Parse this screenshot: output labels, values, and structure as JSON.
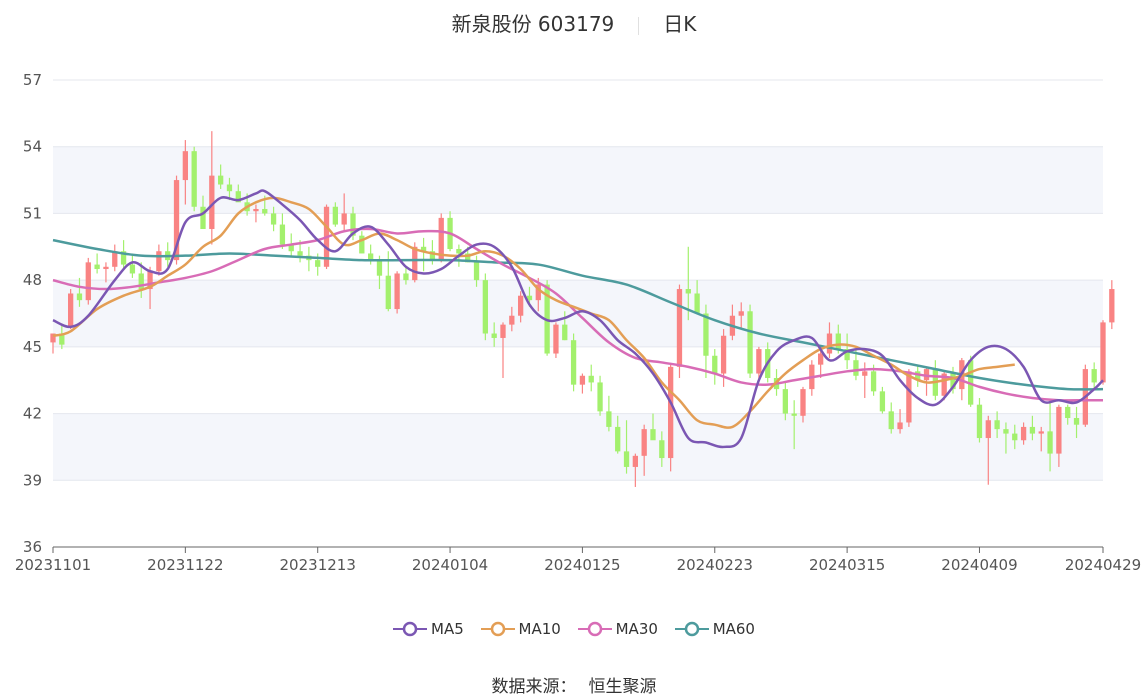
{
  "header": {
    "stock": "新泉股份 603179",
    "period": "日K"
  },
  "source": {
    "label": "数据来源：",
    "value": "恒生聚源"
  },
  "colors": {
    "up": "#f98383",
    "down": "#a3f06d",
    "ma5": "#7b57b3",
    "ma10": "#e39e55",
    "ma30": "#d86cb6",
    "ma60": "#4d9b9d"
  },
  "chart_data": {
    "type": "candlestick",
    "ylim": [
      36,
      57
    ],
    "yticks": [
      36,
      39,
      42,
      45,
      48,
      51,
      54,
      57
    ],
    "xticks": [
      "20231101",
      "20231122",
      "20231213",
      "20240104",
      "20240125",
      "20240223",
      "20240315",
      "20240409",
      "20240429"
    ],
    "x_count": 120,
    "xtick_index": [
      0,
      15,
      30,
      45,
      60,
      75,
      90,
      105,
      119
    ],
    "legend": [
      "MA5",
      "MA10",
      "MA30",
      "MA60"
    ],
    "candles": [
      [
        45.2,
        45.6,
        44.7,
        45.6
      ],
      [
        45.6,
        46.0,
        44.9,
        45.1
      ],
      [
        45.9,
        47.6,
        45.8,
        47.4
      ],
      [
        47.4,
        48.1,
        46.8,
        47.1
      ],
      [
        47.1,
        49.0,
        46.9,
        48.8
      ],
      [
        48.7,
        49.2,
        48.3,
        48.5
      ],
      [
        48.5,
        48.8,
        47.9,
        48.6
      ],
      [
        48.6,
        49.6,
        48.4,
        49.3
      ],
      [
        49.3,
        49.8,
        48.5,
        48.7
      ],
      [
        48.7,
        49.2,
        48.1,
        48.3
      ],
      [
        48.3,
        48.8,
        47.2,
        47.6
      ],
      [
        47.6,
        48.6,
        46.7,
        48.4
      ],
      [
        48.4,
        49.6,
        48.2,
        49.3
      ],
      [
        49.3,
        49.7,
        48.6,
        48.9
      ],
      [
        48.9,
        52.7,
        48.7,
        52.5
      ],
      [
        52.5,
        54.3,
        51.4,
        53.8
      ],
      [
        53.8,
        54.0,
        51.1,
        51.3
      ],
      [
        51.3,
        51.8,
        50.4,
        50.3
      ],
      [
        50.3,
        54.7,
        49.6,
        52.7
      ],
      [
        52.7,
        53.2,
        52.1,
        52.3
      ],
      [
        52.3,
        52.6,
        51.6,
        52.0
      ],
      [
        52.0,
        52.3,
        51.6,
        51.5
      ],
      [
        51.5,
        51.9,
        50.9,
        51.1
      ],
      [
        51.1,
        51.4,
        50.6,
        51.2
      ],
      [
        51.2,
        51.8,
        50.9,
        51.0
      ],
      [
        51.0,
        51.3,
        50.2,
        50.5
      ],
      [
        50.5,
        51.0,
        49.4,
        49.6
      ],
      [
        49.6,
        50.1,
        49.1,
        49.3
      ],
      [
        49.3,
        49.8,
        48.8,
        49.1
      ],
      [
        49.1,
        49.5,
        48.4,
        48.9
      ],
      [
        48.9,
        49.2,
        48.2,
        48.6
      ],
      [
        48.6,
        51.4,
        48.5,
        51.3
      ],
      [
        51.3,
        51.5,
        50.4,
        50.5
      ],
      [
        50.5,
        51.9,
        50.2,
        51.0
      ],
      [
        51.0,
        51.3,
        49.8,
        50.0
      ],
      [
        50.0,
        50.2,
        49.2,
        49.2
      ],
      [
        49.2,
        49.6,
        48.7,
        48.9
      ],
      [
        48.9,
        49.1,
        47.6,
        48.2
      ],
      [
        48.2,
        49.3,
        46.6,
        46.7
      ],
      [
        46.7,
        48.4,
        46.5,
        48.3
      ],
      [
        48.3,
        48.6,
        47.8,
        48.0
      ],
      [
        48.0,
        49.7,
        47.9,
        49.5
      ],
      [
        49.5,
        49.9,
        48.4,
        49.3
      ],
      [
        49.3,
        49.8,
        48.7,
        48.9
      ],
      [
        48.9,
        51.0,
        48.8,
        50.8
      ],
      [
        50.8,
        51.1,
        49.3,
        49.4
      ],
      [
        49.4,
        49.6,
        48.6,
        49.2
      ],
      [
        49.2,
        49.5,
        48.8,
        48.8
      ],
      [
        48.8,
        49.1,
        47.7,
        48.0
      ],
      [
        48.0,
        48.3,
        45.3,
        45.6
      ],
      [
        45.6,
        46.1,
        45.0,
        45.4
      ],
      [
        45.4,
        46.1,
        43.6,
        46.0
      ],
      [
        46.0,
        46.8,
        45.7,
        46.4
      ],
      [
        46.4,
        47.5,
        46.1,
        47.3
      ],
      [
        47.3,
        47.7,
        46.8,
        47.1
      ],
      [
        47.1,
        48.1,
        46.6,
        47.8
      ],
      [
        47.8,
        48.0,
        44.6,
        44.7
      ],
      [
        44.7,
        46.1,
        44.5,
        46.0
      ],
      [
        46.0,
        46.6,
        45.3,
        45.3
      ],
      [
        45.3,
        45.6,
        43.0,
        43.3
      ],
      [
        43.3,
        43.8,
        42.9,
        43.7
      ],
      [
        43.7,
        44.2,
        43.0,
        43.4
      ],
      [
        43.4,
        43.7,
        41.9,
        42.1
      ],
      [
        42.1,
        42.8,
        41.2,
        41.4
      ],
      [
        41.4,
        41.9,
        40.2,
        40.3
      ],
      [
        40.3,
        41.7,
        39.3,
        39.6
      ],
      [
        39.6,
        40.2,
        38.7,
        40.1
      ],
      [
        40.1,
        41.5,
        39.2,
        41.3
      ],
      [
        41.3,
        42.0,
        40.9,
        40.8
      ],
      [
        40.8,
        41.2,
        39.6,
        40.0
      ],
      [
        40.0,
        44.2,
        39.4,
        44.1
      ],
      [
        44.1,
        47.8,
        43.6,
        47.6
      ],
      [
        47.6,
        49.5,
        46.2,
        47.4
      ],
      [
        47.4,
        48.0,
        46.5,
        46.5
      ],
      [
        46.5,
        46.9,
        43.6,
        44.6
      ],
      [
        44.6,
        44.9,
        43.3,
        43.8
      ],
      [
        43.8,
        45.8,
        43.2,
        45.5
      ],
      [
        45.5,
        46.9,
        45.3,
        46.4
      ],
      [
        46.4,
        47.0,
        45.8,
        46.6
      ],
      [
        46.6,
        46.9,
        43.6,
        43.8
      ],
      [
        43.8,
        45.0,
        43.4,
        44.9
      ],
      [
        44.9,
        45.2,
        43.4,
        43.6
      ],
      [
        43.6,
        44.0,
        42.8,
        43.1
      ],
      [
        43.1,
        43.4,
        41.7,
        42.0
      ],
      [
        42.0,
        42.6,
        40.4,
        41.9
      ],
      [
        41.9,
        43.2,
        41.6,
        43.1
      ],
      [
        43.1,
        44.4,
        42.8,
        44.2
      ],
      [
        44.2,
        45.0,
        43.6,
        44.7
      ],
      [
        44.7,
        46.1,
        44.5,
        45.6
      ],
      [
        45.6,
        46.0,
        44.7,
        44.9
      ],
      [
        44.9,
        45.6,
        44.0,
        44.4
      ],
      [
        44.4,
        44.9,
        43.5,
        43.7
      ],
      [
        43.7,
        44.3,
        42.7,
        43.9
      ],
      [
        43.9,
        44.2,
        42.8,
        43.0
      ],
      [
        43.0,
        43.2,
        42.0,
        42.1
      ],
      [
        42.1,
        42.5,
        41.1,
        41.3
      ],
      [
        41.3,
        42.2,
        41.1,
        41.6
      ],
      [
        41.6,
        44.0,
        41.4,
        43.9
      ],
      [
        43.9,
        44.2,
        43.2,
        43.5
      ],
      [
        43.5,
        44.1,
        42.8,
        44.0
      ],
      [
        44.0,
        44.4,
        42.6,
        42.8
      ],
      [
        42.8,
        43.9,
        42.6,
        43.8
      ],
      [
        43.8,
        44.1,
        42.9,
        43.1
      ],
      [
        43.1,
        44.5,
        42.6,
        44.4
      ],
      [
        44.4,
        44.6,
        42.3,
        42.4
      ],
      [
        42.4,
        42.7,
        40.7,
        40.9
      ],
      [
        40.9,
        41.9,
        38.8,
        41.7
      ],
      [
        41.7,
        42.1,
        40.9,
        41.3
      ],
      [
        41.3,
        41.6,
        40.2,
        41.1
      ],
      [
        41.1,
        41.5,
        40.4,
        40.8
      ],
      [
        40.8,
        41.6,
        40.6,
        41.4
      ],
      [
        41.4,
        41.9,
        40.8,
        41.1
      ],
      [
        41.1,
        41.4,
        40.3,
        41.2
      ],
      [
        41.2,
        42.6,
        39.4,
        40.2
      ],
      [
        40.2,
        42.4,
        39.6,
        42.3
      ],
      [
        42.3,
        42.4,
        41.5,
        41.8
      ],
      [
        41.8,
        42.3,
        40.9,
        41.5
      ],
      [
        41.5,
        44.2,
        41.4,
        44.0
      ],
      [
        44.0,
        44.3,
        43.1,
        43.4
      ],
      [
        43.4,
        46.2,
        43.3,
        46.1
      ],
      [
        46.1,
        48.0,
        45.8,
        47.6
      ]
    ],
    "ma5": [
      [
        0,
        46.2
      ],
      [
        2,
        45.9
      ],
      [
        4,
        46.4
      ],
      [
        7,
        48.0
      ],
      [
        9,
        48.8
      ],
      [
        11,
        48.4
      ],
      [
        13,
        48.5
      ],
      [
        15,
        50.6
      ],
      [
        17,
        51.0
      ],
      [
        19,
        51.7
      ],
      [
        21,
        51.6
      ],
      [
        23,
        51.9
      ],
      [
        24,
        52.0
      ],
      [
        26,
        51.4
      ],
      [
        28,
        50.7
      ],
      [
        30,
        49.8
      ],
      [
        32,
        49.3
      ],
      [
        34,
        50.1
      ],
      [
        36,
        50.4
      ],
      [
        38,
        49.6
      ],
      [
        40,
        48.6
      ],
      [
        42,
        48.3
      ],
      [
        44,
        48.5
      ],
      [
        46,
        49.1
      ],
      [
        48,
        49.6
      ],
      [
        50,
        49.5
      ],
      [
        52,
        48.6
      ],
      [
        54,
        46.9
      ],
      [
        56,
        46.2
      ],
      [
        58,
        46.3
      ],
      [
        60,
        46.6
      ],
      [
        62,
        46.2
      ],
      [
        64,
        45.3
      ],
      [
        66,
        44.7
      ],
      [
        68,
        43.8
      ],
      [
        70,
        42.5
      ],
      [
        72,
        40.9
      ],
      [
        74,
        40.7
      ],
      [
        76,
        40.5
      ],
      [
        78,
        40.9
      ],
      [
        80,
        43.5
      ],
      [
        82,
        44.8
      ],
      [
        84,
        45.3
      ],
      [
        86,
        45.4
      ],
      [
        88,
        44.4
      ],
      [
        90,
        44.8
      ],
      [
        92,
        44.9
      ],
      [
        94,
        44.6
      ],
      [
        96,
        43.5
      ],
      [
        98,
        42.7
      ],
      [
        100,
        42.4
      ],
      [
        102,
        43.2
      ],
      [
        104,
        44.4
      ],
      [
        106,
        45.0
      ],
      [
        108,
        44.9
      ],
      [
        110,
        44.1
      ],
      [
        112,
        42.6
      ],
      [
        114,
        42.6
      ],
      [
        116,
        42.5
      ],
      [
        118,
        43.1
      ],
      [
        119,
        43.5
      ]
    ],
    "ma10": [
      [
        0,
        45.5
      ],
      [
        2,
        45.7
      ],
      [
        5,
        46.7
      ],
      [
        8,
        47.3
      ],
      [
        11,
        47.7
      ],
      [
        13,
        48.2
      ],
      [
        15,
        48.7
      ],
      [
        17,
        49.5
      ],
      [
        19,
        50.0
      ],
      [
        21,
        51.0
      ],
      [
        23,
        51.5
      ],
      [
        25,
        51.7
      ],
      [
        27,
        51.5
      ],
      [
        29,
        51.2
      ],
      [
        31,
        50.4
      ],
      [
        33,
        49.6
      ],
      [
        35,
        49.8
      ],
      [
        37,
        50.1
      ],
      [
        39,
        49.8
      ],
      [
        41,
        49.4
      ],
      [
        43,
        49.2
      ],
      [
        45,
        49.1
      ],
      [
        47,
        49.1
      ],
      [
        49,
        49.3
      ],
      [
        51,
        49.1
      ],
      [
        53,
        48.5
      ],
      [
        55,
        47.6
      ],
      [
        57,
        47.1
      ],
      [
        59,
        46.8
      ],
      [
        61,
        46.5
      ],
      [
        63,
        46.2
      ],
      [
        65,
        45.3
      ],
      [
        67,
        44.5
      ],
      [
        69,
        43.4
      ],
      [
        71,
        42.6
      ],
      [
        73,
        41.7
      ],
      [
        75,
        41.5
      ],
      [
        77,
        41.4
      ],
      [
        79,
        42.1
      ],
      [
        81,
        43.0
      ],
      [
        83,
        43.8
      ],
      [
        85,
        44.4
      ],
      [
        87,
        44.9
      ],
      [
        89,
        45.1
      ],
      [
        91,
        45.0
      ],
      [
        93,
        44.6
      ],
      [
        95,
        44.2
      ],
      [
        97,
        43.7
      ],
      [
        99,
        43.4
      ],
      [
        101,
        43.5
      ],
      [
        103,
        43.7
      ],
      [
        105,
        44.0
      ],
      [
        107,
        44.1
      ],
      [
        109,
        44.2
      ]
    ],
    "ma30": [
      [
        0,
        48.0
      ],
      [
        3,
        47.7
      ],
      [
        6,
        47.6
      ],
      [
        9,
        47.7
      ],
      [
        12,
        47.9
      ],
      [
        15,
        48.1
      ],
      [
        18,
        48.4
      ],
      [
        21,
        48.9
      ],
      [
        24,
        49.4
      ],
      [
        27,
        49.6
      ],
      [
        30,
        49.8
      ],
      [
        33,
        50.2
      ],
      [
        36,
        50.3
      ],
      [
        39,
        50.1
      ],
      [
        42,
        50.2
      ],
      [
        45,
        50.1
      ],
      [
        48,
        49.4
      ],
      [
        51,
        48.7
      ],
      [
        54,
        48.1
      ],
      [
        57,
        47.4
      ],
      [
        60,
        46.3
      ],
      [
        63,
        45.2
      ],
      [
        66,
        44.5
      ],
      [
        69,
        44.3
      ],
      [
        72,
        44.1
      ],
      [
        75,
        43.8
      ],
      [
        78,
        43.4
      ],
      [
        81,
        43.3
      ],
      [
        84,
        43.5
      ],
      [
        87,
        43.7
      ],
      [
        90,
        43.9
      ],
      [
        93,
        44.0
      ],
      [
        96,
        43.9
      ],
      [
        99,
        43.7
      ],
      [
        102,
        43.6
      ],
      [
        105,
        43.2
      ],
      [
        108,
        42.9
      ],
      [
        111,
        42.7
      ],
      [
        114,
        42.6
      ],
      [
        117,
        42.6
      ],
      [
        119,
        42.6
      ]
    ],
    "ma60": [
      [
        0,
        49.8
      ],
      [
        5,
        49.4
      ],
      [
        10,
        49.1
      ],
      [
        15,
        49.1
      ],
      [
        20,
        49.2
      ],
      [
        25,
        49.1
      ],
      [
        30,
        49.0
      ],
      [
        35,
        48.9
      ],
      [
        40,
        48.9
      ],
      [
        45,
        48.9
      ],
      [
        50,
        48.8
      ],
      [
        55,
        48.7
      ],
      [
        60,
        48.2
      ],
      [
        65,
        47.8
      ],
      [
        70,
        47.0
      ],
      [
        75,
        46.2
      ],
      [
        80,
        45.6
      ],
      [
        85,
        45.2
      ],
      [
        90,
        44.8
      ],
      [
        95,
        44.4
      ],
      [
        100,
        44.0
      ],
      [
        105,
        43.6
      ],
      [
        110,
        43.3
      ],
      [
        115,
        43.1
      ],
      [
        119,
        43.1
      ]
    ]
  }
}
